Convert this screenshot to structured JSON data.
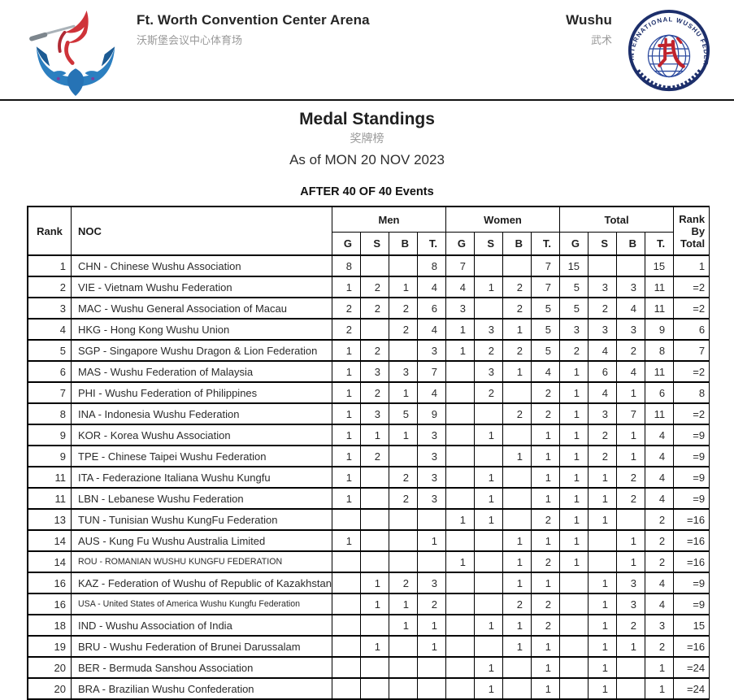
{
  "header": {
    "venue_title": "Ft. Worth Convention Center Arena",
    "venue_title_zh": "沃斯堡会议中心体育场",
    "sport": "Wushu",
    "sport_zh": "武术"
  },
  "title": {
    "main": "Medal Standings",
    "main_zh": "奖牌榜",
    "as_of": "As of MON 20 NOV 2023",
    "events_progress": "AFTER 40 OF 40 Events"
  },
  "table": {
    "headers": {
      "rank": "Rank",
      "noc": "NOC",
      "groups": [
        "Men",
        "Women",
        "Total"
      ],
      "medal_cols": [
        "G",
        "S",
        "B",
        "T."
      ],
      "rank_by_total_lines": [
        "Rank",
        "By",
        "Total"
      ]
    },
    "rows": [
      {
        "rank": "1",
        "noc": "CHN - Chinese Wushu Association",
        "men": [
          "8",
          "",
          "",
          "8"
        ],
        "women": [
          "7",
          "",
          "",
          "7"
        ],
        "total": [
          "15",
          "",
          "",
          "15"
        ],
        "rank_by_total": "1",
        "small": false
      },
      {
        "rank": "2",
        "noc": "VIE - Vietnam Wushu Federation",
        "men": [
          "1",
          "2",
          "1",
          "4"
        ],
        "women": [
          "4",
          "1",
          "2",
          "7"
        ],
        "total": [
          "5",
          "3",
          "3",
          "11"
        ],
        "rank_by_total": "=2",
        "small": false
      },
      {
        "rank": "3",
        "noc": "MAC - Wushu General Association of Macau",
        "men": [
          "2",
          "2",
          "2",
          "6"
        ],
        "women": [
          "3",
          "",
          "2",
          "5"
        ],
        "total": [
          "5",
          "2",
          "4",
          "11"
        ],
        "rank_by_total": "=2",
        "small": false
      },
      {
        "rank": "4",
        "noc": "HKG - Hong Kong Wushu Union",
        "men": [
          "2",
          "",
          "2",
          "4"
        ],
        "women": [
          "1",
          "3",
          "1",
          "5"
        ],
        "total": [
          "3",
          "3",
          "3",
          "9"
        ],
        "rank_by_total": "6",
        "small": false
      },
      {
        "rank": "5",
        "noc": "SGP - Singapore Wushu Dragon & Lion Federation",
        "men": [
          "1",
          "2",
          "",
          "3"
        ],
        "women": [
          "1",
          "2",
          "2",
          "5"
        ],
        "total": [
          "2",
          "4",
          "2",
          "8"
        ],
        "rank_by_total": "7",
        "small": false
      },
      {
        "rank": "6",
        "noc": "MAS - Wushu Federation of Malaysia",
        "men": [
          "1",
          "3",
          "3",
          "7"
        ],
        "women": [
          "",
          "3",
          "1",
          "4"
        ],
        "total": [
          "1",
          "6",
          "4",
          "11"
        ],
        "rank_by_total": "=2",
        "small": false
      },
      {
        "rank": "7",
        "noc": "PHI - Wushu Federation of Philippines",
        "men": [
          "1",
          "2",
          "1",
          "4"
        ],
        "women": [
          "",
          "2",
          "",
          "2"
        ],
        "total": [
          "1",
          "4",
          "1",
          "6"
        ],
        "rank_by_total": "8",
        "small": false
      },
      {
        "rank": "8",
        "noc": "INA - Indonesia Wushu Federation",
        "men": [
          "1",
          "3",
          "5",
          "9"
        ],
        "women": [
          "",
          "",
          "2",
          "2"
        ],
        "total": [
          "1",
          "3",
          "7",
          "11"
        ],
        "rank_by_total": "=2",
        "small": false
      },
      {
        "rank": "9",
        "noc": "KOR - Korea Wushu Association",
        "men": [
          "1",
          "1",
          "1",
          "3"
        ],
        "women": [
          "",
          "1",
          "",
          "1"
        ],
        "total": [
          "1",
          "2",
          "1",
          "4"
        ],
        "rank_by_total": "=9",
        "small": false
      },
      {
        "rank": "9",
        "noc": "TPE - Chinese Taipei Wushu Federation",
        "men": [
          "1",
          "2",
          "",
          "3"
        ],
        "women": [
          "",
          "",
          "1",
          "1"
        ],
        "total": [
          "1",
          "2",
          "1",
          "4"
        ],
        "rank_by_total": "=9",
        "small": false
      },
      {
        "rank": "11",
        "noc": "ITA - Federazione Italiana Wushu Kungfu",
        "men": [
          "1",
          "",
          "2",
          "3"
        ],
        "women": [
          "",
          "1",
          "",
          "1"
        ],
        "total": [
          "1",
          "1",
          "2",
          "4"
        ],
        "rank_by_total": "=9",
        "small": false
      },
      {
        "rank": "11",
        "noc": "LBN - Lebanese Wushu Federation",
        "men": [
          "1",
          "",
          "2",
          "3"
        ],
        "women": [
          "",
          "1",
          "",
          "1"
        ],
        "total": [
          "1",
          "1",
          "2",
          "4"
        ],
        "rank_by_total": "=9",
        "small": false
      },
      {
        "rank": "13",
        "noc": "TUN - Tunisian Wushu KungFu Federation",
        "men": [
          "",
          "",
          "",
          ""
        ],
        "women": [
          "1",
          "1",
          "",
          "2"
        ],
        "total": [
          "1",
          "1",
          "",
          "2"
        ],
        "rank_by_total": "=16",
        "small": false
      },
      {
        "rank": "14",
        "noc": "AUS - Kung Fu Wushu Australia Limited",
        "men": [
          "1",
          "",
          "",
          "1"
        ],
        "women": [
          "",
          "",
          "1",
          "1"
        ],
        "total": [
          "1",
          "",
          "1",
          "2"
        ],
        "rank_by_total": "=16",
        "small": false
      },
      {
        "rank": "14",
        "noc": "ROU - ROMANIAN WUSHU KUNGFU FEDERATION",
        "men": [
          "",
          "",
          "",
          ""
        ],
        "women": [
          "1",
          "",
          "1",
          "2"
        ],
        "total": [
          "1",
          "",
          "1",
          "2"
        ],
        "rank_by_total": "=16",
        "small": true
      },
      {
        "rank": "16",
        "noc": "KAZ - Federation of Wushu of Republic of Kazakhstan",
        "men": [
          "",
          "1",
          "2",
          "3"
        ],
        "women": [
          "",
          "",
          "1",
          "1"
        ],
        "total": [
          "",
          "1",
          "3",
          "4"
        ],
        "rank_by_total": "=9",
        "small": false
      },
      {
        "rank": "16",
        "noc": "USA - United States of America Wushu Kungfu Federation",
        "men": [
          "",
          "1",
          "1",
          "2"
        ],
        "women": [
          "",
          "",
          "2",
          "2"
        ],
        "total": [
          "",
          "1",
          "3",
          "4"
        ],
        "rank_by_total": "=9",
        "small": true
      },
      {
        "rank": "18",
        "noc": "IND - Wushu Association of India",
        "men": [
          "",
          "",
          "1",
          "1"
        ],
        "women": [
          "",
          "1",
          "1",
          "2"
        ],
        "total": [
          "",
          "1",
          "2",
          "3"
        ],
        "rank_by_total": "15",
        "small": false
      },
      {
        "rank": "19",
        "noc": "BRU - Wushu Federation of Brunei Darussalam",
        "men": [
          "",
          "1",
          "",
          "1"
        ],
        "women": [
          "",
          "",
          "1",
          "1"
        ],
        "total": [
          "",
          "1",
          "1",
          "2"
        ],
        "rank_by_total": "=16",
        "small": false
      },
      {
        "rank": "20",
        "noc": "BER - Bermuda Sanshou Association",
        "men": [
          "",
          "",
          "",
          ""
        ],
        "women": [
          "",
          "1",
          "",
          "1"
        ],
        "total": [
          "",
          "1",
          "",
          "1"
        ],
        "rank_by_total": "=24",
        "small": false
      },
      {
        "rank": "20",
        "noc": "BRA - Brazilian Wushu Confederation",
        "men": [
          "",
          "",
          "",
          ""
        ],
        "women": [
          "",
          "1",
          "",
          "1"
        ],
        "total": [
          "",
          "1",
          "",
          "1"
        ],
        "rank_by_total": "=24",
        "small": false
      }
    ]
  },
  "logo_colors": {
    "event_red": "#cf3339",
    "event_blue": "#2c7fc0",
    "event_blue_dark": "#1b5a93",
    "iwuf_navy": "#1d2f6b",
    "iwuf_red": "#c0232c"
  }
}
